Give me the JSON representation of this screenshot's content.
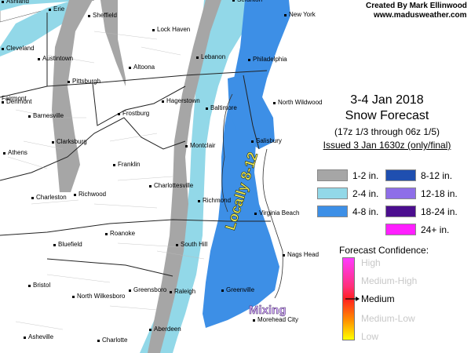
{
  "credits": {
    "author": "Created By Mark Ellinwood",
    "website": "www.madusweather.com"
  },
  "title": {
    "line1": "3-4 Jan 2018",
    "line2": "Snow Forecast",
    "period": "(17z 1/3 through 06z 1/5)",
    "issued": "Issued 3 Jan 1630z (only/final)"
  },
  "legend": [
    {
      "label": "1-2 in.",
      "color": "#a6a6a6"
    },
    {
      "label": "2-4 in.",
      "color": "#92d8e8"
    },
    {
      "label": "4-8 in.",
      "color": "#3d8fe6"
    },
    {
      "label": "8-12 in.",
      "color": "#1f4fb0"
    },
    {
      "label": "12-18 in.",
      "color": "#8e6ee8"
    },
    {
      "label": "18-24 in.",
      "color": "#4b0e8e"
    },
    {
      "label": "24+ in.",
      "color": "#ff1fff"
    }
  ],
  "confidence": {
    "title": "Forecast Confidence:",
    "levels": [
      "High",
      "Medium-High",
      "Medium",
      "Medium-Low",
      "Low"
    ],
    "selected": "Medium"
  },
  "annotations": {
    "locally": "Locally 8-12",
    "mixing": "Mixing"
  },
  "cities": [
    "Erie",
    "Sheffield",
    "Scranton",
    "New York",
    "Cleveland",
    "Austintown",
    "Lock Haven",
    "Lebanon",
    "Philadelphia",
    "Pittsburgh",
    "Altoona",
    "Hagerstown",
    "Baltimore",
    "North Wildwood",
    "Fairmont",
    "Barnesville",
    "Frostburg",
    "Salisbury",
    "Clarksburg",
    "Montclair",
    "Athens",
    "Franklin",
    "Charlottesville",
    "Charleston",
    "Richwood",
    "Richmond",
    "Virginia Beach",
    "Roanoke",
    "South Hill",
    "Bluefield",
    "Nags Head",
    "Bristol",
    "North Wilkesboro",
    "Greensboro",
    "Raleigh",
    "Greenville",
    "Asheville",
    "Charlotte",
    "Aberdeen",
    "Morehead City",
    "Ashland",
    "Denmont"
  ]
}
